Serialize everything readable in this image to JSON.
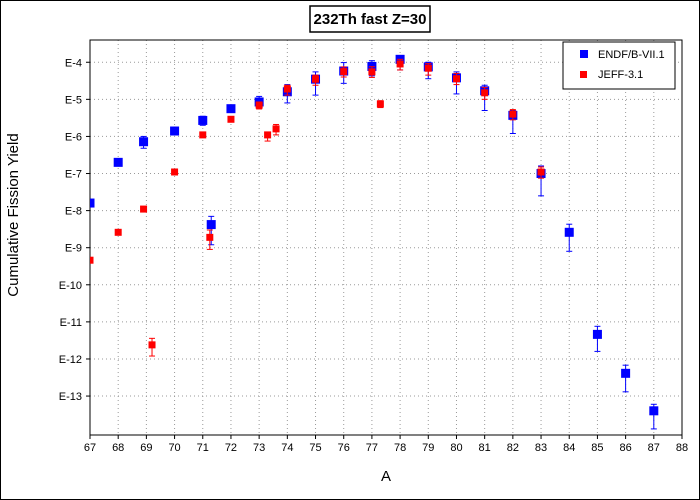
{
  "chart_data": {
    "type": "scatter",
    "title": "232Th fast Z=30",
    "xlabel": "A",
    "ylabel": "Cumulative Fission Yield",
    "xlim": [
      67,
      88
    ],
    "ylog_exponent_range": [
      -14.05,
      -3.4
    ],
    "y_scale": "log",
    "x_ticks": [
      "67",
      "68",
      "69",
      "70",
      "71",
      "72",
      "73",
      "74",
      "75",
      "76",
      "77",
      "78",
      "79",
      "80",
      "81",
      "82",
      "83",
      "84",
      "85",
      "86",
      "87",
      "88"
    ],
    "y_ticks": [
      "E-4",
      "E-5",
      "E-6",
      "E-7",
      "E-8",
      "E-9",
      "E-10",
      "E-11",
      "E-12",
      "E-13"
    ],
    "grid": true,
    "legend_position": "top-right",
    "series": [
      {
        "name": "ENDF/B-VII.1",
        "color": "#0000ff",
        "marker": "square",
        "points": [
          {
            "x": 67,
            "y": 1.6e-08,
            "ylo": 1.6e-08,
            "yhi": 1.6e-08
          },
          {
            "x": 68,
            "y": 2e-07,
            "ylo": 1.6e-07,
            "yhi": 2.3e-07
          },
          {
            "x": 68.9,
            "y": 7.2e-07,
            "ylo": 4.8e-07,
            "yhi": 1e-06
          },
          {
            "x": 70,
            "y": 1.4e-06,
            "ylo": 1.4e-06,
            "yhi": 1.4e-06
          },
          {
            "x": 71,
            "y": 2.7e-06,
            "ylo": 2e-06,
            "yhi": 3.5e-06
          },
          {
            "x": 71.3,
            "y": 4.2e-09,
            "ylo": 1.2e-09,
            "yhi": 7e-09
          },
          {
            "x": 72,
            "y": 5.6e-06,
            "ylo": 5.6e-06,
            "yhi": 5.6e-06
          },
          {
            "x": 73,
            "y": 8.5e-06,
            "ylo": 6.5e-06,
            "yhi": 1.2e-05
          },
          {
            "x": 74,
            "y": 1.6e-05,
            "ylo": 8e-06,
            "yhi": 2.5e-05
          },
          {
            "x": 75,
            "y": 3.5e-05,
            "ylo": 1.3e-05,
            "yhi": 5.5e-05
          },
          {
            "x": 76,
            "y": 5.8e-05,
            "ylo": 2.7e-05,
            "yhi": 9.8e-05
          },
          {
            "x": 77,
            "y": 7.7e-05,
            "ylo": 4.3e-05,
            "yhi": 0.00011
          },
          {
            "x": 78,
            "y": 0.00012,
            "ylo": 6.2e-05,
            "yhi": 0.00015
          },
          {
            "x": 79,
            "y": 7.5e-05,
            "ylo": 3.6e-05,
            "yhi": 0.0001
          },
          {
            "x": 80,
            "y": 3.8e-05,
            "ylo": 1.4e-05,
            "yhi": 5.5e-05
          },
          {
            "x": 81,
            "y": 1.7e-05,
            "ylo": 5e-06,
            "yhi": 2.4e-05
          },
          {
            "x": 82,
            "y": 3.7e-06,
            "ylo": 1.2e-06,
            "yhi": 5e-06
          },
          {
            "x": 83,
            "y": 1e-07,
            "ylo": 2.5e-08,
            "yhi": 1.6e-07
          },
          {
            "x": 84,
            "y": 2.6e-09,
            "ylo": 8e-10,
            "yhi": 4.3e-09
          },
          {
            "x": 85,
            "y": 4.6e-12,
            "ylo": 1.6e-12,
            "yhi": 7.6e-12
          },
          {
            "x": 86,
            "y": 4.1e-13,
            "ylo": 1.3e-13,
            "yhi": 6.8e-13
          },
          {
            "x": 87,
            "y": 4e-14,
            "ylo": 1.3e-14,
            "yhi": 6e-14
          }
        ]
      },
      {
        "name": "JEFF-3.1",
        "color": "#ff0000",
        "marker": "square",
        "points": [
          {
            "x": 67,
            "y": 4.6e-10,
            "ylo": 4.6e-10,
            "yhi": 4.6e-10
          },
          {
            "x": 68,
            "y": 2.6e-09,
            "ylo": 2.6e-09,
            "yhi": 2.6e-09
          },
          {
            "x": 68.9,
            "y": 1.1e-08,
            "ylo": 1.1e-08,
            "yhi": 1.1e-08
          },
          {
            "x": 69.2,
            "y": 2.4e-12,
            "ylo": 1.2e-12,
            "yhi": 3.6e-12
          },
          {
            "x": 70,
            "y": 1.1e-07,
            "ylo": 1.1e-07,
            "yhi": 1.1e-07
          },
          {
            "x": 71,
            "y": 1.1e-06,
            "ylo": 1.1e-06,
            "yhi": 1.1e-06
          },
          {
            "x": 71.25,
            "y": 1.9e-09,
            "ylo": 9e-10,
            "yhi": 3e-09
          },
          {
            "x": 72,
            "y": 2.9e-06,
            "ylo": 2.9e-06,
            "yhi": 2.9e-06
          },
          {
            "x": 73,
            "y": 7e-06,
            "ylo": 5.5e-06,
            "yhi": 8.5e-06
          },
          {
            "x": 73.3,
            "y": 1.1e-06,
            "ylo": 7.5e-07,
            "yhi": 1.3e-06
          },
          {
            "x": 73.6,
            "y": 1.6e-06,
            "ylo": 1.1e-06,
            "yhi": 2.1e-06
          },
          {
            "x": 74,
            "y": 1.9e-05,
            "ylo": 1.3e-05,
            "yhi": 2.4e-05
          },
          {
            "x": 75,
            "y": 3.5e-05,
            "ylo": 2.4e-05,
            "yhi": 4.5e-05
          },
          {
            "x": 76,
            "y": 5.6e-05,
            "ylo": 4e-05,
            "yhi": 7.5e-05
          },
          {
            "x": 77,
            "y": 5.5e-05,
            "ylo": 3.9e-05,
            "yhi": 7.6e-05
          },
          {
            "x": 77.3,
            "y": 7.5e-06,
            "ylo": 6e-06,
            "yhi": 9.2e-06
          },
          {
            "x": 78,
            "y": 9e-05,
            "ylo": 6.2e-05,
            "yhi": 0.00012
          },
          {
            "x": 79,
            "y": 6.9e-05,
            "ylo": 4.5e-05,
            "yhi": 9.2e-05
          },
          {
            "x": 80,
            "y": 3.6e-05,
            "ylo": 2.5e-05,
            "yhi": 5e-05
          },
          {
            "x": 81,
            "y": 1.5e-05,
            "ylo": 1e-05,
            "yhi": 2.1e-05
          },
          {
            "x": 82,
            "y": 4e-06,
            "ylo": 2.8e-06,
            "yhi": 5.3e-06
          },
          {
            "x": 83,
            "y": 1.1e-07,
            "ylo": 7.5e-08,
            "yhi": 1.5e-07
          }
        ]
      }
    ]
  }
}
